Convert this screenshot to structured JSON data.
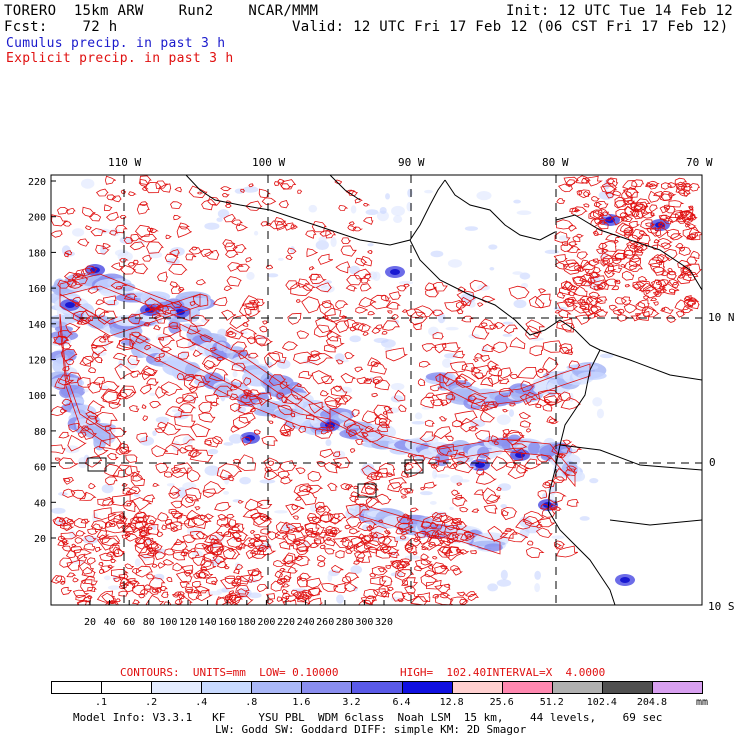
{
  "header": {
    "model": "TORERO  15km ARW    Run2    NCAR/MMM",
    "init": "Init: 12 UTC Tue 14 Feb 12",
    "fcst": "Fcst:    72 h",
    "valid": "Valid: 12 UTC Fri 17 Feb 12 (06 CST Fri 17 Feb 12)",
    "cumulus": "Cumulus precip. in past 3 h",
    "explicit": "Explicit precip. in past 3 h"
  },
  "axes": {
    "lon_labels": [
      "110 W",
      "100 W",
      "90 W",
      "80 W",
      "70 W"
    ],
    "lat_labels": [
      "10 N",
      "0",
      "10 S"
    ],
    "y_ticks": [
      "220",
      "200",
      "180",
      "160",
      "140",
      "120",
      "100",
      "80",
      "60",
      "40",
      "20"
    ],
    "x_ticks": [
      "20",
      "40",
      "60",
      "80",
      "100",
      "120",
      "140",
      "160",
      "180",
      "200",
      "220",
      "240",
      "260",
      "280",
      "300",
      "320"
    ]
  },
  "contours": {
    "units_label": "CONTOURS:  UNITS=mm  LOW= 0.10000",
    "high_label": "HIGH=  102.40",
    "interval_label": "INTERVAL=X  4.0000"
  },
  "colorbar": {
    "labels": [
      ".1",
      ".2",
      ".4",
      ".8",
      "1.6",
      "3.2",
      "6.4",
      "12.8",
      "25.6",
      "51.2",
      "102.4",
      "204.8"
    ],
    "units": "mm",
    "colors": [
      "#ffffff",
      "#ffffff",
      "#e4ecff",
      "#c8daff",
      "#aab8f8",
      "#8a8ef0",
      "#5a5ae8",
      "#1010e0",
      "#ffd0d0",
      "#ff88b0",
      "#b0b0b0",
      "#505050",
      "#d8a0f0"
    ]
  },
  "footer": {
    "line1": "Model Info: V3.3.1   KF     YSU PBL  WDM 6class  Noah LSM  15 km,    44 levels,    69 sec",
    "line2": "LW: Godd SW: Goddard DIFF: simple KM: 2D Smagor"
  }
}
